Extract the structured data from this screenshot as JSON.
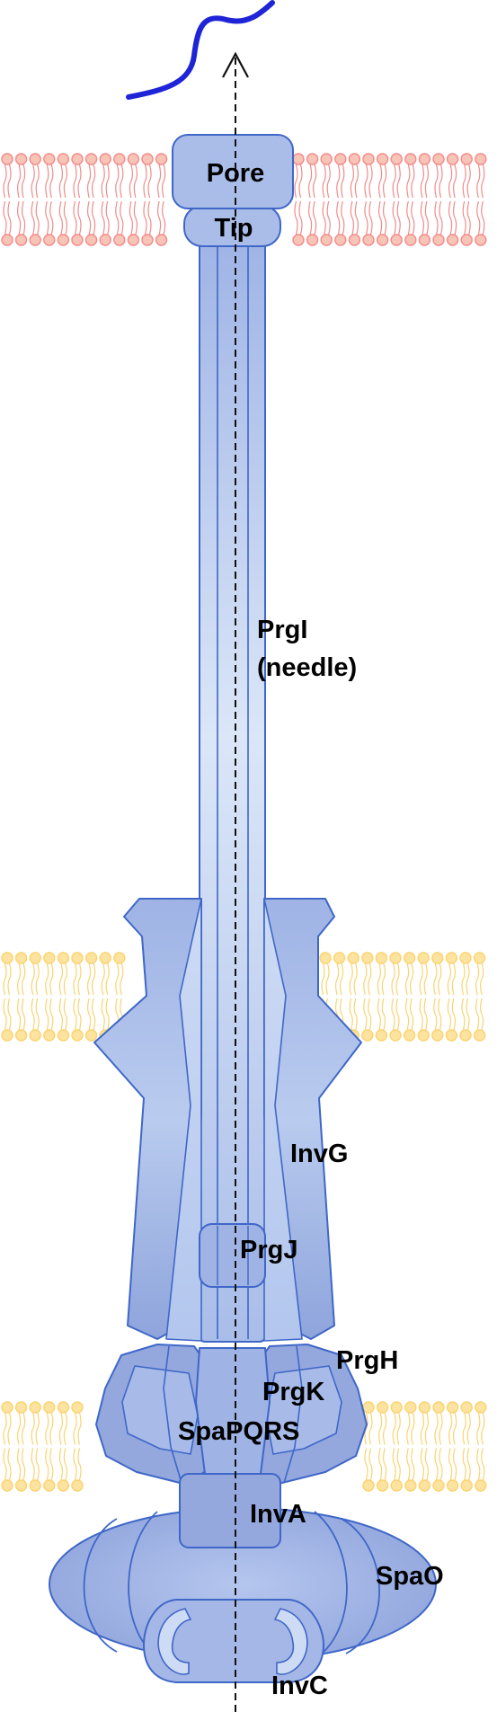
{
  "colors": {
    "protein_fill_light": "#d6e1f5",
    "protein_fill": "#aabde9",
    "protein_fill_dark": "#94a8de",
    "protein_stroke": "#3f67c8",
    "host_membrane": "#f28a8a",
    "host_membrane_head": "#f7c4b6",
    "bacterial_membrane": "#fbd36f",
    "bacterial_membrane_head": "#fde3a0",
    "effector": "#1f24d6",
    "arrow": "#111111"
  },
  "icons": {
    "effector": "effector-squiggle",
    "export_axis": "dashed-arrow-up"
  },
  "labels": {
    "pore": "Pore",
    "tip": "Tip",
    "needle_line1": "PrgI",
    "needle_line2": "(needle)",
    "invg": "InvG",
    "prgj": "PrgJ",
    "prgh": "PrgH",
    "prgk": "PrgK",
    "spapqrs": "SpaPQRS",
    "inva": "InvA",
    "spao": "SpaO",
    "invc": "InvC"
  }
}
